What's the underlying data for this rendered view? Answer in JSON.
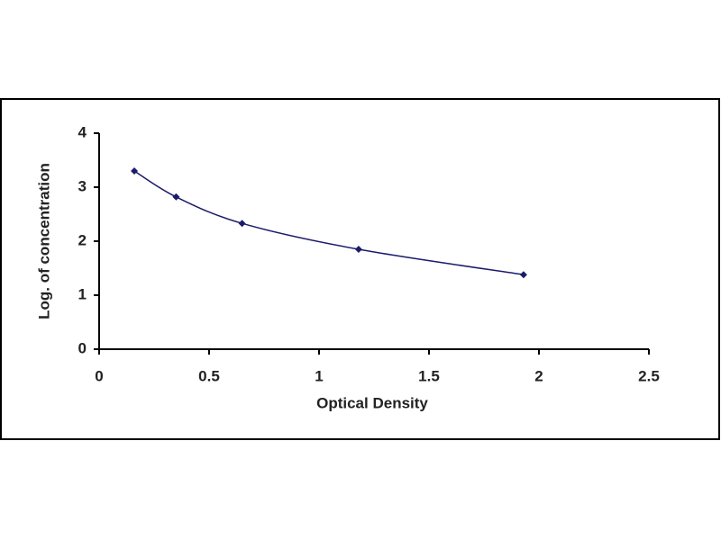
{
  "chart_data": {
    "type": "scatter",
    "x_label": "Optical Density",
    "y_label": "Log. of concentration",
    "series": [
      {
        "color": "#1b1b6b",
        "x": [
          0.16,
          0.35,
          0.65,
          1.18,
          1.93
        ],
        "values": [
          3.3,
          2.82,
          2.33,
          1.85,
          1.38
        ]
      }
    ],
    "xlim": [
      0,
      2.5
    ],
    "xticks": [
      0,
      0.5,
      1,
      1.5,
      2,
      2.5
    ],
    "ylim": [
      0,
      4
    ],
    "yticks": [
      0,
      1,
      2,
      3,
      4
    ],
    "trendline": true,
    "grid": false
  }
}
